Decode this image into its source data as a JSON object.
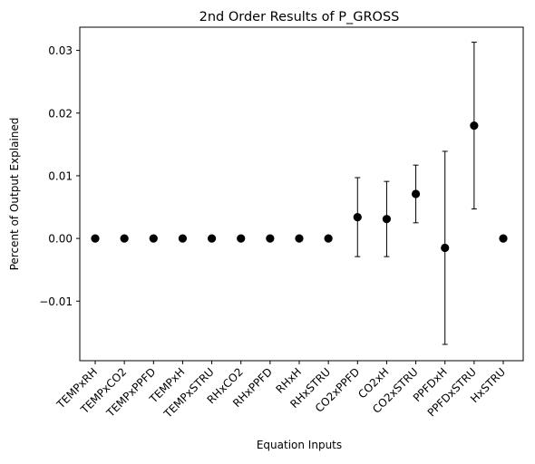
{
  "chart_data": {
    "type": "scatter",
    "title": "2nd Order Results of P_GROSS",
    "xlabel": "Equation Inputs",
    "ylabel": "Percent of Output Explained",
    "categories": [
      "TEMPxRH",
      "TEMPxCO2",
      "TEMPxPPFD",
      "TEMPxH",
      "TEMPxSTRU",
      "RHxCO2",
      "RHxPPFD",
      "RHxH",
      "RHxSTRU",
      "CO2xPPFD",
      "CO2xH",
      "CO2xSTRU",
      "PPFDxH",
      "PPFDxSTRU",
      "HxSTRU"
    ],
    "values": [
      0.0,
      0.0,
      0.0,
      0.0,
      0.0,
      0.0,
      0.0,
      0.0,
      0.0,
      0.0034,
      0.0031,
      0.0071,
      -0.0015,
      0.018,
      0.0
    ],
    "errors": [
      0.0,
      0.0,
      0.0,
      0.0,
      0.0,
      0.0,
      0.0,
      0.0,
      0.0,
      0.0063,
      0.006,
      0.0046,
      0.0154,
      0.0133,
      0.0
    ],
    "ylim": [
      -0.0195,
      0.0337
    ],
    "yticks": [
      -0.01,
      0.0,
      0.01,
      0.02,
      0.03
    ],
    "ytick_labels": [
      "−0.01",
      "0.00",
      "0.01",
      "0.02",
      "0.03"
    ],
    "grid": false,
    "marker_color": "#000000"
  }
}
